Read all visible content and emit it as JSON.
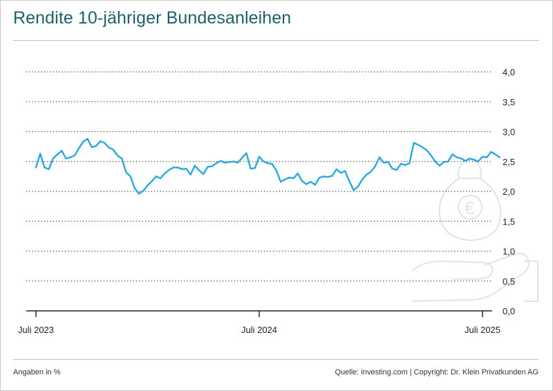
{
  "title": "Rendite 10-jähriger Bundesanleihen",
  "footer": {
    "note": "Angaben in %",
    "source": "Quelle: investing.com | Copyright: Dr. Klein Privatkunden AG"
  },
  "colors": {
    "title": "#1f5f6b",
    "line": "#29a8df",
    "grid": "#444444",
    "watermark": "#e3e3e3"
  },
  "watermark_icon": "money-bag-on-hand-icon",
  "chart_data": {
    "type": "line",
    "title": "Rendite 10-jähriger Bundesanleihen",
    "xlabel": "",
    "ylabel": "",
    "unit": "%",
    "ylim": [
      0.0,
      4.0
    ],
    "yticks": [
      {
        "value": 0.0,
        "label": "0,0"
      },
      {
        "value": 0.5,
        "label": "0,5"
      },
      {
        "value": 1.0,
        "label": "1,0"
      },
      {
        "value": 1.5,
        "label": "1,5"
      },
      {
        "value": 2.0,
        "label": "2,0"
      },
      {
        "value": 2.5,
        "label": "2,5"
      },
      {
        "value": 3.0,
        "label": "3,0"
      },
      {
        "value": 3.5,
        "label": "3,5"
      },
      {
        "value": 4.0,
        "label": "4,0"
      }
    ],
    "xticks": [
      {
        "week": 0,
        "label": "Juli 2023"
      },
      {
        "week": 52,
        "label": "Juli 2024"
      },
      {
        "week": 104,
        "label": "Juli 2025"
      }
    ],
    "xlim": [
      -2,
      108
    ],
    "grid": "dotted-horizontal",
    "series": [
      {
        "name": "Rendite 10-jähriger Bundesanleihen",
        "values": [
          2.4,
          2.63,
          2.4,
          2.37,
          2.55,
          2.62,
          2.68,
          2.55,
          2.57,
          2.6,
          2.72,
          2.83,
          2.88,
          2.74,
          2.76,
          2.84,
          2.81,
          2.73,
          2.7,
          2.6,
          2.55,
          2.32,
          2.25,
          2.05,
          1.96,
          2.01,
          2.1,
          2.17,
          2.25,
          2.22,
          2.3,
          2.36,
          2.4,
          2.4,
          2.37,
          2.38,
          2.28,
          2.43,
          2.35,
          2.29,
          2.41,
          2.42,
          2.47,
          2.51,
          2.48,
          2.49,
          2.5,
          2.48,
          2.56,
          2.64,
          2.38,
          2.39,
          2.58,
          2.5,
          2.47,
          2.46,
          2.35,
          2.16,
          2.2,
          2.23,
          2.22,
          2.3,
          2.17,
          2.12,
          2.16,
          2.11,
          2.23,
          2.25,
          2.24,
          2.26,
          2.37,
          2.31,
          2.34,
          2.17,
          2.02,
          2.08,
          2.2,
          2.28,
          2.33,
          2.42,
          2.57,
          2.48,
          2.49,
          2.38,
          2.36,
          2.46,
          2.44,
          2.47,
          2.81,
          2.78,
          2.74,
          2.69,
          2.6,
          2.5,
          2.43,
          2.49,
          2.5,
          2.62,
          2.57,
          2.55,
          2.51,
          2.55,
          2.53,
          2.5,
          2.58,
          2.57,
          2.66,
          2.62,
          2.57
        ]
      }
    ]
  }
}
